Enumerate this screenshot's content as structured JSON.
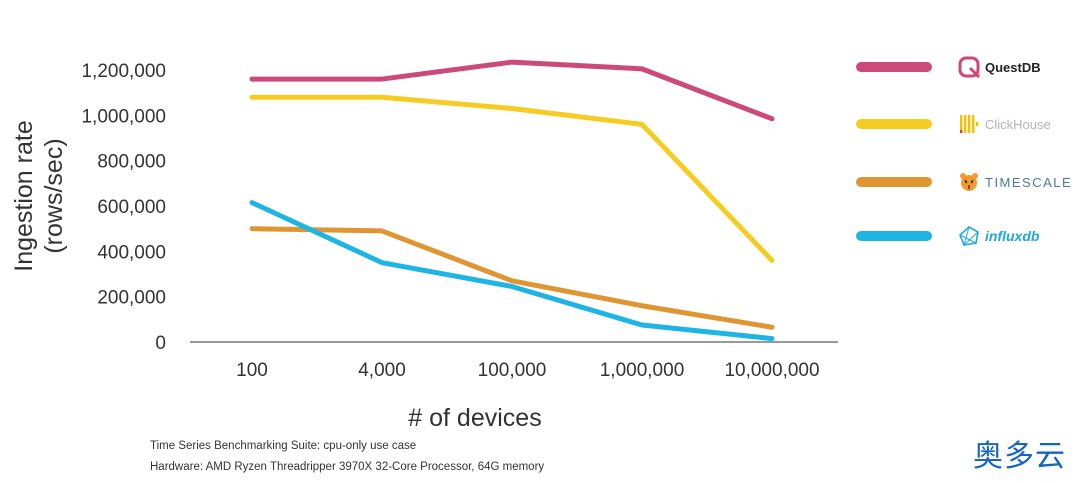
{
  "chart_data": {
    "type": "line",
    "categories": [
      "100",
      "4,000",
      "100,000",
      "1,000,000",
      "10,000,000"
    ],
    "xlabel": "# of devices",
    "ylabel": "Ingestion rate",
    "ylabel_unit": "(rows/sec)",
    "ylim": [
      0,
      1200000
    ],
    "yticks": [
      "0",
      "200,000",
      "400,000",
      "600,000",
      "800,000",
      "1,000,000",
      "1,200,000"
    ],
    "grid": false,
    "legend_position": "right",
    "series": [
      {
        "name": "QuestDB",
        "color": "#cc4a7a",
        "values": [
          1160000,
          1160000,
          1235000,
          1205000,
          985000
        ]
      },
      {
        "name": "ClickHouse",
        "color": "#f5cc22",
        "values": [
          1080000,
          1080000,
          1030000,
          960000,
          360000
        ]
      },
      {
        "name": "TIMESCALE",
        "color": "#df9632",
        "values": [
          500000,
          490000,
          270000,
          160000,
          65000
        ]
      },
      {
        "name": "influxdb",
        "color": "#1eb4e4",
        "values": [
          615000,
          350000,
          245000,
          75000,
          15000
        ]
      }
    ]
  },
  "footnotes": {
    "line1": "Time Series Benchmarking Suite: cpu-only use case",
    "line2": "Hardware: AMD Ryzen Threadripper 3970X 32-Core Processor, 64G memory"
  },
  "watermark": "奥多云"
}
